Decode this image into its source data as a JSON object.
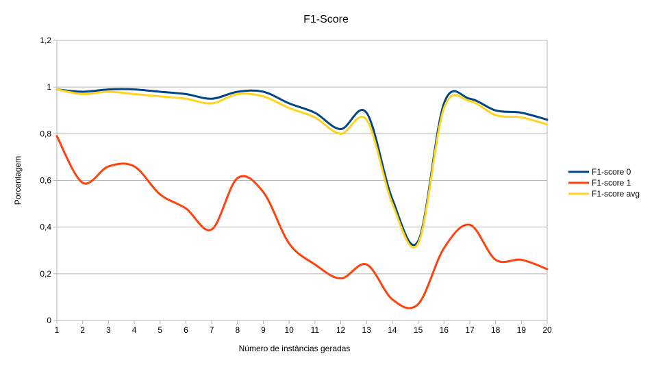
{
  "chart_data": {
    "type": "line",
    "title": "F1-Score",
    "xlabel": "Número de instâncias geradas",
    "ylabel": "Porcentagem",
    "x": [
      1,
      2,
      3,
      4,
      5,
      6,
      7,
      8,
      9,
      10,
      11,
      12,
      13,
      14,
      15,
      16,
      17,
      18,
      19,
      20
    ],
    "x_tick_labels": [
      "1",
      "2",
      "3",
      "4",
      "5",
      "6",
      "7",
      "8",
      "9",
      "10",
      "11",
      "12",
      "13",
      "14",
      "15",
      "16",
      "17",
      "18",
      "19",
      "20"
    ],
    "ylim": [
      0,
      1.2
    ],
    "y_ticks": [
      0,
      0.2,
      0.4,
      0.6,
      0.8,
      1,
      1.2
    ],
    "y_tick_labels": [
      "0",
      "0,2",
      "0,4",
      "0,6",
      "0,8",
      "1",
      "1,2"
    ],
    "grid": "horizontal",
    "legend_position": "right",
    "series": [
      {
        "name": "F1-score 0",
        "color": "#004586",
        "values": [
          0.99,
          0.98,
          0.99,
          0.99,
          0.98,
          0.97,
          0.95,
          0.98,
          0.98,
          0.93,
          0.89,
          0.82,
          0.89,
          0.52,
          0.34,
          0.93,
          0.95,
          0.9,
          0.89,
          0.86
        ]
      },
      {
        "name": "F1-score 1",
        "color": "#ff420e",
        "values": [
          0.79,
          0.59,
          0.66,
          0.66,
          0.54,
          0.48,
          0.39,
          0.61,
          0.55,
          0.33,
          0.24,
          0.18,
          0.24,
          0.09,
          0.07,
          0.31,
          0.41,
          0.26,
          0.26,
          0.22
        ]
      },
      {
        "name": "F1-score avg",
        "color": "#ffd320",
        "values": [
          0.99,
          0.97,
          0.98,
          0.97,
          0.96,
          0.95,
          0.93,
          0.97,
          0.96,
          0.91,
          0.87,
          0.8,
          0.86,
          0.5,
          0.33,
          0.91,
          0.94,
          0.88,
          0.87,
          0.84
        ]
      }
    ]
  }
}
